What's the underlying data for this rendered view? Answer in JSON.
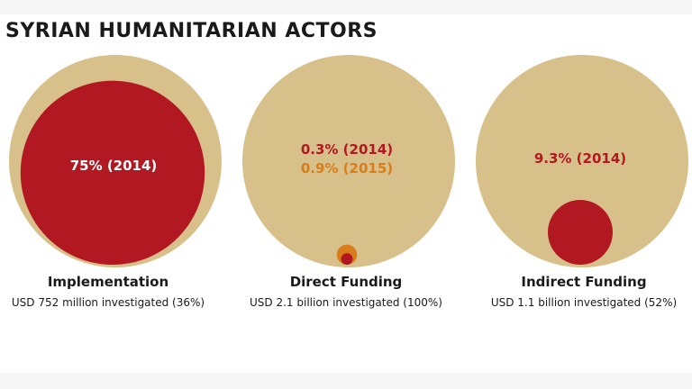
{
  "title": "SYRIAN HUMANITARIAN ACTORS",
  "colors": {
    "outer": "#d8c08a",
    "red": "#b11822",
    "orange": "#d97c1a",
    "white": "#ffffff"
  },
  "chart_data": [
    {
      "type": "bubble",
      "name": "Implementation",
      "subtitle": "USD 752 million investigated (36%)",
      "investigated_usd": "752 million",
      "investigated_share_percent": 36,
      "shares": [
        {
          "year": 2014,
          "percent": 75,
          "label": "75% (2014)"
        }
      ]
    },
    {
      "type": "bubble",
      "name": "Direct Funding",
      "subtitle": "USD 2.1 billion investigated (100%)",
      "investigated_usd": "2.1 billion",
      "investigated_share_percent": 100,
      "shares": [
        {
          "year": 2014,
          "percent": 0.3,
          "label": "0.3% (2014)"
        },
        {
          "year": 2015,
          "percent": 0.9,
          "label": "0.9% (2015)"
        }
      ]
    },
    {
      "type": "bubble",
      "name": "Indirect Funding",
      "subtitle": "USD 1.1 billion investigated (52%)",
      "investigated_usd": "1.1 billion",
      "investigated_share_percent": 52,
      "shares": [
        {
          "year": 2014,
          "percent": 9.3,
          "label": "9.3% (2014)"
        }
      ]
    }
  ]
}
